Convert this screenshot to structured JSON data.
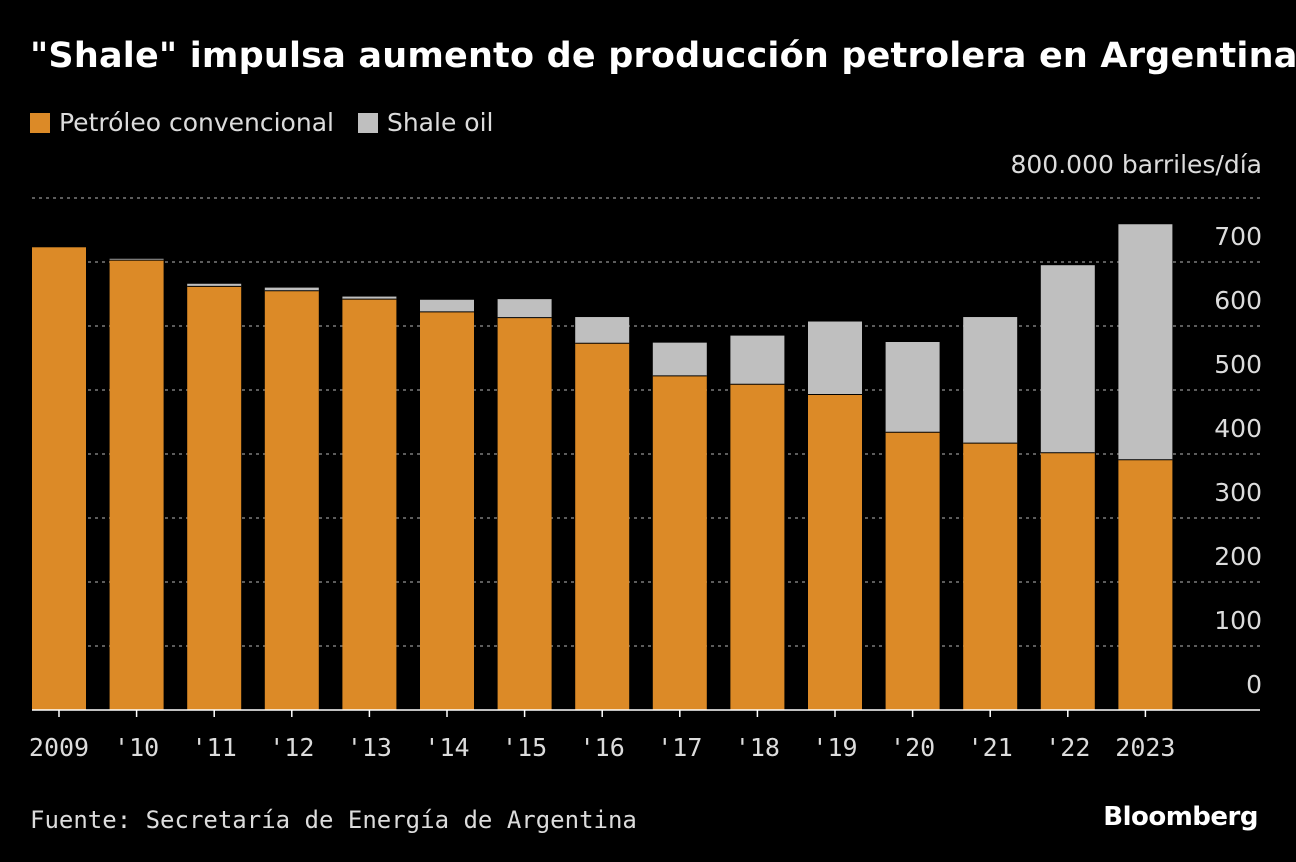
{
  "title": "\"Shale\" impulsa aumento de producción petrolera en Argentina",
  "legend": [
    {
      "label": "Petróleo convencional",
      "color": "#dc8a27"
    },
    {
      "label": "Shale oil",
      "color": "#bfbfbf"
    }
  ],
  "unit_label": "800.000 barriles/día",
  "source": "Fuente: Secretaría de Energía de Argentina",
  "brand": "Bloomberg",
  "colors": {
    "background": "#000000",
    "grid": "#7a7a7a",
    "axis": "#ffffff",
    "text": "#dcdcdc"
  },
  "chart_data": {
    "type": "bar",
    "stacked": true,
    "categories": [
      "2009",
      "'10",
      "'11",
      "'12",
      "'13",
      "'14",
      "'15",
      "'16",
      "'17",
      "'18",
      "'19",
      "'20",
      "'21",
      "'22",
      "2023"
    ],
    "series": [
      {
        "name": "Petróleo convencional",
        "values": [
          723,
          703,
          662,
          655,
          642,
          622,
          613,
          573,
          522,
          509,
          493,
          434,
          417,
          402,
          391
        ]
      },
      {
        "name": "Shale oil",
        "values": [
          0,
          2,
          4,
          5,
          4,
          19,
          29,
          41,
          52,
          76,
          114,
          141,
          197,
          293,
          368
        ]
      }
    ],
    "ylim": [
      0,
      800
    ],
    "yticks": [
      0,
      100,
      200,
      300,
      400,
      500,
      600,
      700
    ],
    "ytick_labels": [
      "0",
      "100",
      "200",
      "300",
      "400",
      "500",
      "600",
      "700"
    ],
    "y_axis_side": "right",
    "grid": true,
    "legend_position": "top-left",
    "title": "\"Shale\" impulsa aumento de producción petrolera en Argentina",
    "ylabel": "800.000 barriles/día",
    "xlabel": ""
  }
}
